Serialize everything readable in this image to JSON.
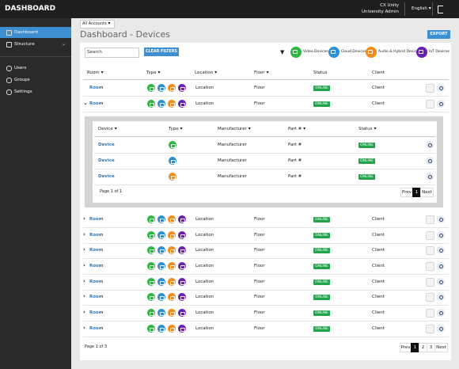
{
  "header": {
    "brand": "DASHBOARD",
    "user_name": "CX Unity",
    "user_role": "University Admin",
    "language": "English"
  },
  "sidebar": {
    "items": [
      "Dashboard",
      "Structure",
      "Users",
      "Groups",
      "Settings"
    ]
  },
  "main": {
    "account_select": "All Accounts",
    "title": "Dashboard - Devices",
    "export": "EXPORT",
    "search_placeholder": "Search",
    "clear_filters": "CLEAR FILTERS",
    "legend": [
      "Video Devices",
      "Cloud Devices",
      "Audio & Hybrid Devices",
      "IoT Devices"
    ],
    "table": {
      "headers": [
        "Room",
        "Type",
        "Location",
        "Floor",
        "Status",
        "Client"
      ],
      "rows": [
        {
          "room": "Room",
          "location": "Location",
          "floor": "Floor",
          "status": "ONLINE",
          "client": "Client"
        },
        {
          "room": "Room",
          "location": "Location",
          "floor": "Floor",
          "status": "ONLINE",
          "client": "Client"
        },
        {
          "room": "Room",
          "location": "Location",
          "floor": "Floor",
          "status": "ONLINE",
          "client": "Client"
        },
        {
          "room": "Room",
          "location": "Location",
          "floor": "Floor",
          "status": "ONLINE",
          "client": "Client"
        },
        {
          "room": "Room",
          "location": "Location",
          "floor": "Floor",
          "status": "ONLINE",
          "client": "Client"
        },
        {
          "room": "Room",
          "location": "Location",
          "floor": "Floor",
          "status": "ONLINE",
          "client": "Client"
        },
        {
          "room": "Room",
          "location": "Location",
          "floor": "Floor",
          "status": "ONLINE",
          "client": "Client"
        },
        {
          "room": "Room",
          "location": "Location",
          "floor": "Floor",
          "status": "ONLINE",
          "client": "Client"
        },
        {
          "room": "Room",
          "location": "Location",
          "floor": "Floor",
          "status": "ONLINE",
          "client": "Client"
        },
        {
          "room": "Room",
          "location": "Location",
          "floor": "Floor",
          "status": "ONLINE",
          "client": "Client"
        }
      ],
      "footer": "Page 1 of 3",
      "pagination": [
        "Prev",
        "1",
        "2",
        "3",
        "Next"
      ]
    },
    "subtable": {
      "headers": [
        "Device",
        "Type",
        "Manufacturer",
        "Part #",
        "Status"
      ],
      "rows": [
        {
          "device": "Device",
          "manufacturer": "Manufacturer",
          "part": "Part #",
          "status": "ONLINE"
        },
        {
          "device": "Device",
          "manufacturer": "Manufacturer",
          "part": "Part #",
          "status": "ONLINE"
        },
        {
          "device": "Device",
          "manufacturer": "Manufacturer",
          "part": "Part #",
          "status": "ONLINE"
        }
      ],
      "footer": "Page 1 of 1",
      "pagination": [
        "Prev",
        "1",
        "Next"
      ]
    }
  }
}
